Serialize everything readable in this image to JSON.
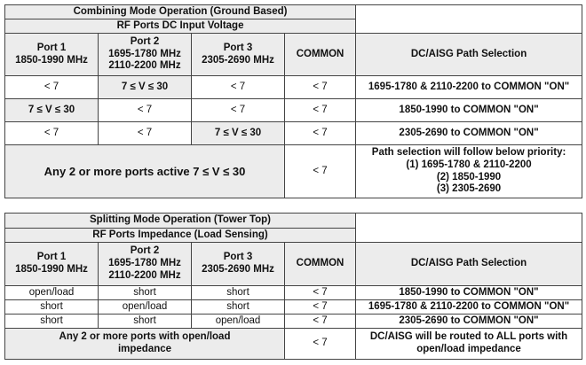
{
  "combining": {
    "title": "Combining Mode Operation (Ground Based)",
    "subtitle": "RF Ports DC Input Voltage",
    "headers": [
      [
        "Port 1",
        "1850-1990 MHz"
      ],
      [
        "Port 2",
        "1695-1780 MHz",
        "2110-2200 MHz"
      ],
      [
        "Port 3",
        "2305-2690 MHz"
      ],
      [
        "COMMON"
      ],
      [
        "DC/AISG Path Selection"
      ]
    ],
    "rows": [
      [
        [
          "< 7"
        ],
        [
          "7 ≤ V ≤  30"
        ],
        [
          "< 7"
        ],
        [
          "< 7"
        ],
        [
          "1695-1780 & 2110-2200 to COMMON \"ON\""
        ]
      ],
      [
        [
          "7 ≤ V ≤  30"
        ],
        [
          "< 7"
        ],
        [
          "< 7"
        ],
        [
          "< 7"
        ],
        [
          "1850-1990 to COMMON \"ON\""
        ]
      ],
      [
        [
          "< 7"
        ],
        [
          "< 7"
        ],
        [
          "7 ≤ V ≤  30"
        ],
        [
          "< 7"
        ],
        [
          "2305-2690 to COMMON \"ON\""
        ]
      ],
      [
        [
          "Any 2 or more ports active 7 ≤ V ≤  30"
        ],
        [
          "< 7"
        ],
        [
          "Path selection will follow below priority:",
          "(1) 1695-1780 & 2110-2200",
          "(2) 1850-1990",
          "(3) 2305-2690"
        ]
      ]
    ]
  },
  "splitting": {
    "title": "Splitting Mode Operation (Tower Top)",
    "subtitle": "RF Ports Impedance (Load Sensing)",
    "headers": [
      [
        "Port 1",
        "1850-1990 MHz"
      ],
      [
        "Port 2",
        "1695-1780 MHz",
        "2110-2200 MHz"
      ],
      [
        "Port 3",
        "2305-2690 MHz"
      ],
      [
        "COMMON"
      ],
      [
        "DC/AISG Path Selection"
      ]
    ],
    "rows": [
      [
        [
          "open/load"
        ],
        [
          "short"
        ],
        [
          "short"
        ],
        [
          "< 7"
        ],
        [
          "1850-1990 to COMMON \"ON\""
        ]
      ],
      [
        [
          "short"
        ],
        [
          "open/load"
        ],
        [
          "short"
        ],
        [
          "< 7"
        ],
        [
          "1695-1780 & 2110-2200 to COMMON \"ON\""
        ]
      ],
      [
        [
          "short"
        ],
        [
          "short"
        ],
        [
          "open/load"
        ],
        [
          "< 7"
        ],
        [
          "2305-2690 to COMMON \"ON\""
        ]
      ],
      [
        [
          "Any 2 or more ports with open/load",
          "impedance"
        ],
        [
          "< 7"
        ],
        [
          "DC/AISG will be routed to ALL ports with",
          "open/load impedance"
        ]
      ]
    ]
  }
}
